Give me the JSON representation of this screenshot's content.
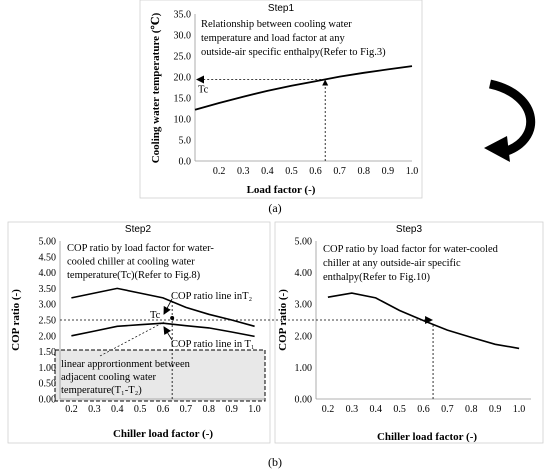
{
  "chart_data": [
    {
      "type": "line",
      "panel": "step1",
      "title": "Step1",
      "xlabel": "Load factor  (-)",
      "ylabel": "Cooling water temperature (℃)",
      "xlim": [
        0.1,
        1.0
      ],
      "ylim": [
        0,
        35
      ],
      "x_ticks": [
        "0.2",
        "0.3",
        "0.4",
        "0.5",
        "0.6",
        "0.7",
        "0.8",
        "0.9",
        "1.0"
      ],
      "y_ticks": [
        "0.0",
        "5.0",
        "10.0",
        "15.0",
        "20.0",
        "25.0",
        "30.0",
        "35.0"
      ],
      "series": [
        {
          "x": [
            0.1,
            0.2,
            0.3,
            0.4,
            0.5,
            0.6,
            0.7,
            0.8,
            0.9,
            1.0
          ],
          "y": [
            12.2,
            13.8,
            15.3,
            16.7,
            17.9,
            19.0,
            20.1,
            21.0,
            21.8,
            22.6
          ]
        }
      ],
      "annotations": {
        "note": [
          "Relationship between cooling water",
          "temperature and load factor at any",
          "outside-air specific enthalpy(Refer to Fig.3)"
        ],
        "tc_label": "Tc",
        "marker_x": 0.64,
        "tc_value": 19.4
      },
      "caption": "(a)"
    },
    {
      "type": "line",
      "panel": "step2",
      "title": "Step2",
      "xlabel": "Chiller load factor    (-)",
      "ylabel": "COP ratio  (-)",
      "xlim": [
        0.15,
        1.05
      ],
      "ylim": [
        0,
        5
      ],
      "x_ticks": [
        "0.2",
        "0.3",
        "0.4",
        "0.5",
        "0.6",
        "0.7",
        "0.8",
        "0.9",
        "1.0"
      ],
      "y_ticks": [
        "0.00",
        "0.50",
        "1.00",
        "1.50",
        "2.00",
        "2.50",
        "3.00",
        "3.50",
        "4.00",
        "4.50",
        "5.00"
      ],
      "series": [
        {
          "name": "COP ratio line inT2",
          "x": [
            0.2,
            0.3,
            0.4,
            0.5,
            0.6,
            0.7,
            0.8,
            0.9,
            1.0
          ],
          "y": [
            3.2,
            3.35,
            3.5,
            3.35,
            3.2,
            2.9,
            2.68,
            2.5,
            2.3
          ]
        },
        {
          "name": "COP ratio line inT1",
          "x": [
            0.2,
            0.3,
            0.4,
            0.5,
            0.6,
            0.7,
            0.8,
            0.9,
            1.0
          ],
          "y": [
            2.0,
            2.15,
            2.3,
            2.35,
            2.4,
            2.32,
            2.25,
            2.12,
            1.98
          ]
        }
      ],
      "annotations": {
        "note": [
          "COP ratio by load factor for water-",
          "cooled chiller at cooling water",
          "temperature(Tc)(Refer to Fig.8)"
        ],
        "label_t2": "COP ratio line inT₂",
        "label_t1": "COP ratio line in T₁",
        "tc_label": "Tc",
        "box_text": [
          "linear apprortionment between",
          "adjacent cooling water",
          "temperature(T₁-T₂)"
        ],
        "marker_x": 0.64,
        "marker_y": 2.5
      }
    },
    {
      "type": "line",
      "panel": "step3",
      "title": "Step3",
      "xlabel": "Chiller load factor  (-)",
      "ylabel": "COP ratio  (-)",
      "xlim": [
        0.15,
        1.05
      ],
      "ylim": [
        0,
        5
      ],
      "x_ticks": [
        "0.2",
        "0.3",
        "0.4",
        "0.5",
        "0.6",
        "0.7",
        "0.8",
        "0.9",
        "1.0"
      ],
      "y_ticks": [
        "0.00",
        "1.00",
        "2.00",
        "3.00",
        "4.00",
        "5.00"
      ],
      "series": [
        {
          "x": [
            0.2,
            0.3,
            0.4,
            0.5,
            0.6,
            0.7,
            0.8,
            0.9,
            1.0
          ],
          "y": [
            3.22,
            3.35,
            3.2,
            2.8,
            2.48,
            2.18,
            1.95,
            1.73,
            1.6
          ]
        }
      ],
      "annotations": {
        "note": [
          "COP ratio by load factor for water-cooled",
          "chiller at any outside-air specific",
          "enthalpy(Refer to Fig.10)"
        ],
        "marker_x": 0.64,
        "marker_y": 2.4
      }
    }
  ],
  "caption_b": "(b)"
}
